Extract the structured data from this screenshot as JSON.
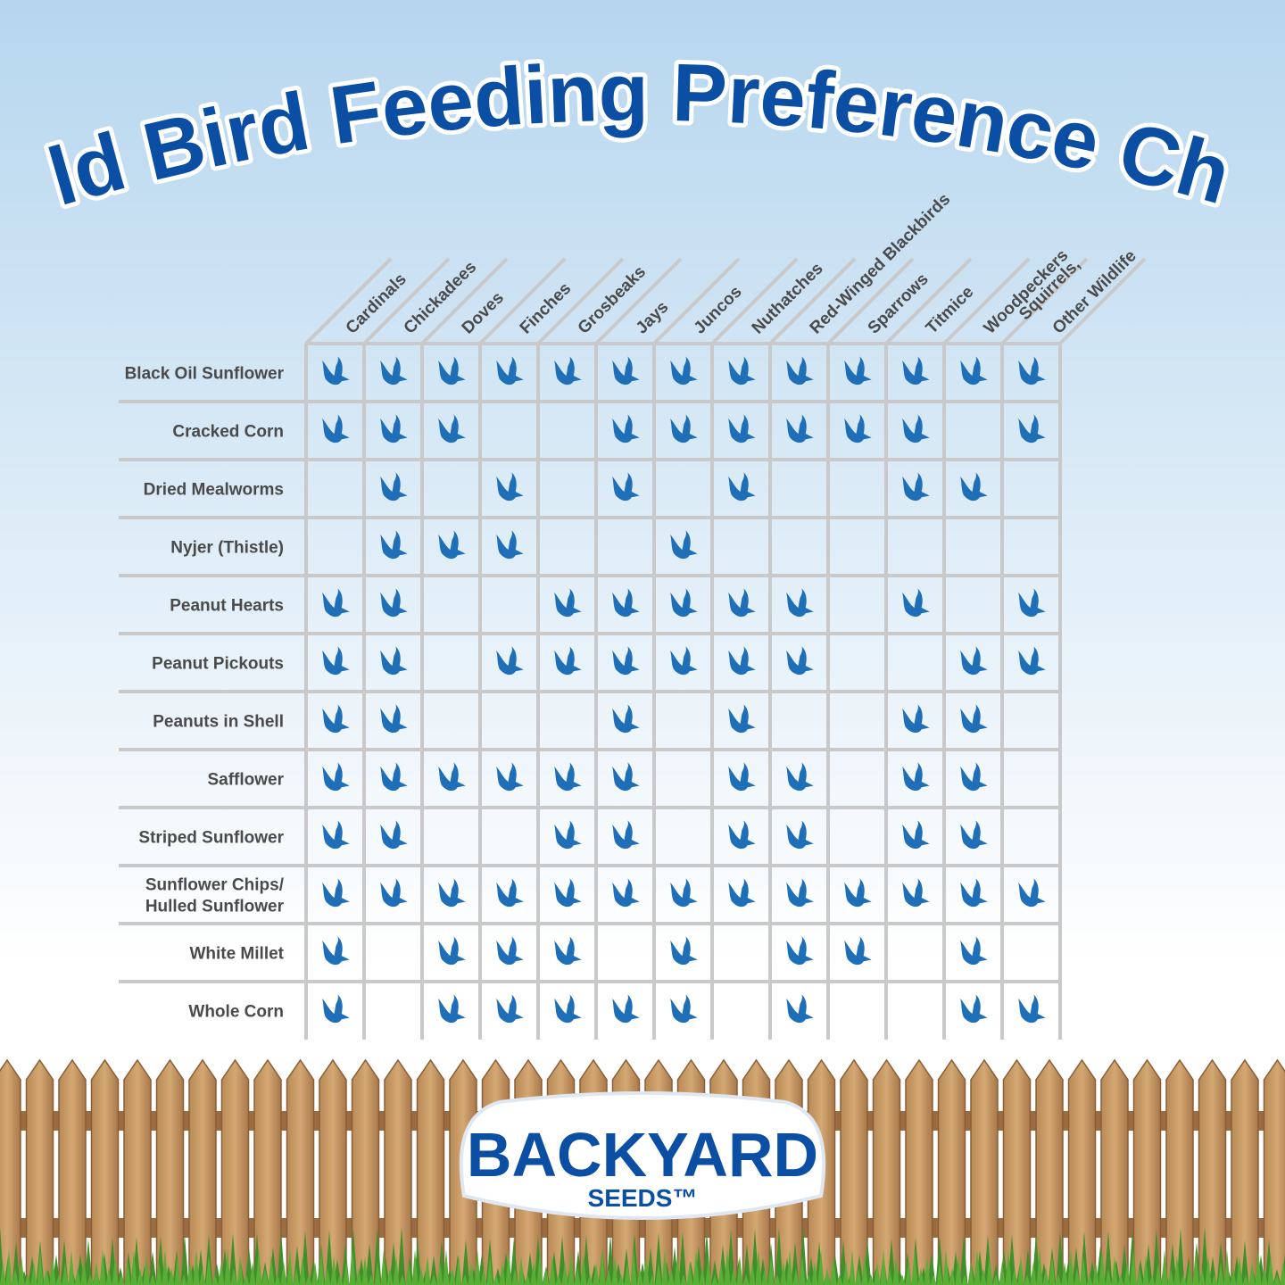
{
  "title": "Wild Bird Feeding Preference Chart",
  "table": {
    "columns": [
      [
        "Cardinals"
      ],
      [
        "Chickadees"
      ],
      [
        "Doves"
      ],
      [
        "Finches"
      ],
      [
        "Grosbeaks"
      ],
      [
        "Jays"
      ],
      [
        "Juncos"
      ],
      [
        "Nuthatches"
      ],
      [
        "Red-Winged Blackbirds"
      ],
      [
        "Sparrows"
      ],
      [
        "Titmice"
      ],
      [
        "Woodpeckers"
      ],
      [
        "Squirrels,",
        "Other Wildlife"
      ]
    ],
    "rows": [
      {
        "label": [
          "Black Oil Sunflower"
        ],
        "cells": [
          1,
          1,
          1,
          1,
          1,
          1,
          1,
          1,
          1,
          1,
          1,
          1,
          1
        ]
      },
      {
        "label": [
          "Cracked Corn"
        ],
        "cells": [
          1,
          1,
          1,
          0,
          0,
          1,
          1,
          1,
          1,
          1,
          1,
          0,
          1
        ]
      },
      {
        "label": [
          "Dried Mealworms"
        ],
        "cells": [
          0,
          1,
          0,
          1,
          0,
          1,
          0,
          1,
          0,
          0,
          1,
          1,
          0
        ]
      },
      {
        "label": [
          "Nyjer (Thistle)"
        ],
        "cells": [
          0,
          1,
          1,
          1,
          0,
          0,
          1,
          0,
          0,
          0,
          0,
          0,
          0
        ]
      },
      {
        "label": [
          "Peanut Hearts"
        ],
        "cells": [
          1,
          1,
          0,
          0,
          1,
          1,
          1,
          1,
          1,
          0,
          1,
          0,
          1
        ]
      },
      {
        "label": [
          "Peanut Pickouts"
        ],
        "cells": [
          1,
          1,
          0,
          1,
          1,
          1,
          1,
          1,
          1,
          0,
          0,
          1,
          1
        ]
      },
      {
        "label": [
          "Peanuts in Shell"
        ],
        "cells": [
          1,
          1,
          0,
          0,
          0,
          1,
          0,
          1,
          0,
          0,
          1,
          1,
          0
        ]
      },
      {
        "label": [
          "Safflower"
        ],
        "cells": [
          1,
          1,
          1,
          1,
          1,
          1,
          0,
          1,
          1,
          0,
          1,
          1,
          0
        ]
      },
      {
        "label": [
          "Striped Sunflower"
        ],
        "cells": [
          1,
          1,
          0,
          0,
          1,
          1,
          0,
          1,
          1,
          0,
          1,
          1,
          0
        ]
      },
      {
        "label": [
          "Sunflower Chips/",
          "Hulled Sunflower"
        ],
        "cells": [
          1,
          1,
          1,
          1,
          1,
          1,
          1,
          1,
          1,
          1,
          1,
          1,
          1
        ]
      },
      {
        "label": [
          "White Millet"
        ],
        "cells": [
          1,
          0,
          1,
          1,
          1,
          0,
          1,
          0,
          1,
          1,
          0,
          1,
          0
        ]
      },
      {
        "label": [
          "Whole Corn"
        ],
        "cells": [
          1,
          0,
          1,
          1,
          1,
          1,
          1,
          0,
          1,
          0,
          0,
          1,
          1
        ]
      }
    ]
  },
  "logo": {
    "name": "BACKYARD",
    "sub": "SEEDS™"
  }
}
